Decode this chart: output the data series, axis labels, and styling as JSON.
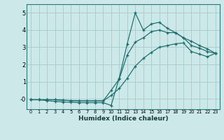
{
  "xlabel": "Humidex (Indice chaleur)",
  "bg_color": "#cce8e8",
  "grid_color": "#aacece",
  "line_color": "#1a6b6b",
  "xlim": [
    -0.5,
    23.5
  ],
  "ylim": [
    -0.6,
    5.5
  ],
  "xticks": [
    0,
    1,
    2,
    3,
    4,
    5,
    6,
    7,
    8,
    9,
    10,
    11,
    12,
    13,
    14,
    15,
    16,
    17,
    18,
    19,
    20,
    21,
    22,
    23
  ],
  "yticks": [
    0,
    1,
    2,
    3,
    4,
    5
  ],
  "ytick_labels": [
    "-0",
    "1",
    "2",
    "3",
    "4",
    "5"
  ],
  "line1_x": [
    0,
    1,
    2,
    3,
    4,
    5,
    6,
    7,
    8,
    9,
    10,
    11,
    12,
    13,
    14,
    15,
    16,
    17,
    18,
    19,
    20,
    21,
    22,
    23
  ],
  "line1_y": [
    -0.05,
    -0.05,
    -0.1,
    -0.15,
    -0.18,
    -0.2,
    -0.22,
    -0.22,
    -0.22,
    -0.22,
    -0.38,
    1.2,
    3.2,
    5.0,
    4.0,
    4.35,
    4.45,
    4.1,
    3.85,
    3.55,
    3.1,
    2.95,
    2.75,
    2.65
  ],
  "line2_x": [
    0,
    1,
    2,
    3,
    4,
    5,
    6,
    7,
    8,
    9,
    10,
    11,
    12,
    13,
    14,
    15,
    16,
    17,
    18,
    19,
    20,
    21,
    22,
    23
  ],
  "line2_y": [
    -0.05,
    -0.05,
    -0.05,
    -0.05,
    -0.08,
    -0.1,
    -0.12,
    -0.12,
    -0.12,
    -0.12,
    0.5,
    1.15,
    2.55,
    3.3,
    3.55,
    3.9,
    4.0,
    3.85,
    3.85,
    3.55,
    3.35,
    3.1,
    2.9,
    2.65
  ],
  "line3_x": [
    0,
    1,
    2,
    3,
    4,
    5,
    6,
    7,
    8,
    9,
    10,
    11,
    12,
    13,
    14,
    15,
    16,
    17,
    18,
    19,
    20,
    21,
    22,
    23
  ],
  "line3_y": [
    -0.05,
    -0.05,
    -0.05,
    -0.05,
    -0.08,
    -0.1,
    -0.12,
    -0.12,
    -0.12,
    -0.12,
    0.2,
    0.6,
    1.2,
    1.9,
    2.35,
    2.7,
    3.0,
    3.1,
    3.2,
    3.25,
    2.75,
    2.6,
    2.45,
    2.65
  ]
}
